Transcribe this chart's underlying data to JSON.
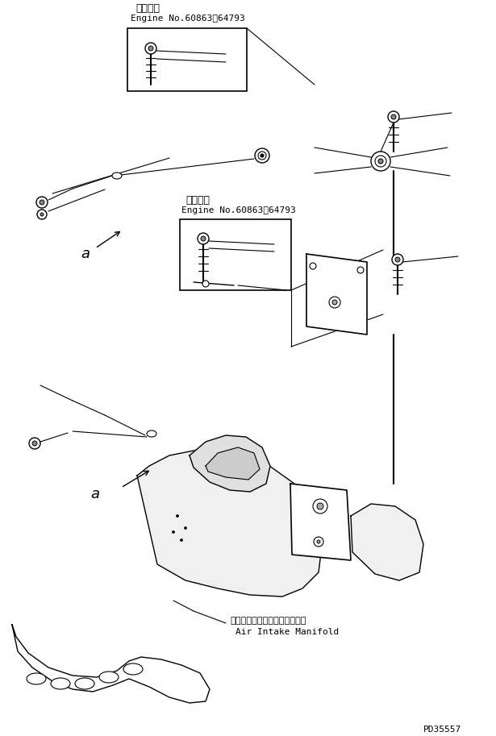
{
  "background_color": "#ffffff",
  "line_color": "#000000",
  "part_number": "PD35557",
  "label1_jp": "適用号機",
  "label1_en": "Engine No.60863～64793",
  "label2_jp": "適用号機",
  "label2_en": "Engine No.60863～64793",
  "manifold_label_jp": "エアーインテークマニホールド",
  "manifold_label_en": "Air Intake Manifold",
  "label_a": "a"
}
